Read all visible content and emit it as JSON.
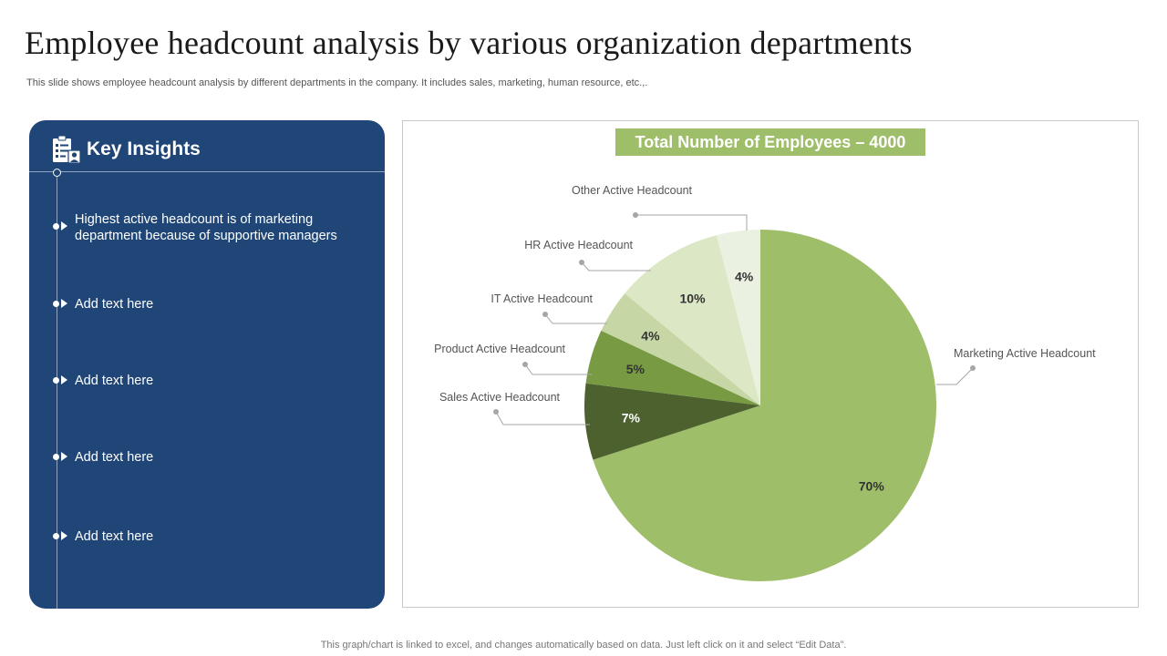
{
  "title": "Employee headcount analysis by various organization departments",
  "subtitle": "This slide shows employee headcount analysis by  different departments in the company. It includes sales, marketing, human resource, etc.,.",
  "insights_panel": {
    "title": "Key Insights",
    "items": [
      "Highest active headcount is of marketing department because of supportive managers",
      "Add text here",
      "Add text here",
      "Add text here",
      "Add text here"
    ]
  },
  "chart_data": {
    "type": "pie",
    "title": "Total Number of Employees – 4000",
    "labels": [
      "Marketing  Active Headcount",
      "Sales Active Headcount",
      "Product Active Headcount",
      "IT Active Headcount",
      "HR Active Headcount",
      "Other Active Headcount"
    ],
    "values": [
      70,
      7,
      5,
      4,
      10,
      4
    ],
    "value_labels": [
      "70%",
      "7%",
      "5%",
      "4%",
      "10%",
      "4%"
    ],
    "colors": [
      "#9fbe69",
      "#4d612e",
      "#789a42",
      "#c6d7a5",
      "#dce7c6",
      "#ebf1e1"
    ],
    "value_label_colors": [
      "#333333",
      "#ffffff",
      "#333333",
      "#333333",
      "#333333",
      "#333333"
    ],
    "start_angle_deg": 0,
    "direction": "clockwise",
    "title_color": "#9fbe69"
  },
  "footer": "This graph/chart is linked to excel,  and changes automatically based on data. Just left click on it and select “Edit Data”."
}
